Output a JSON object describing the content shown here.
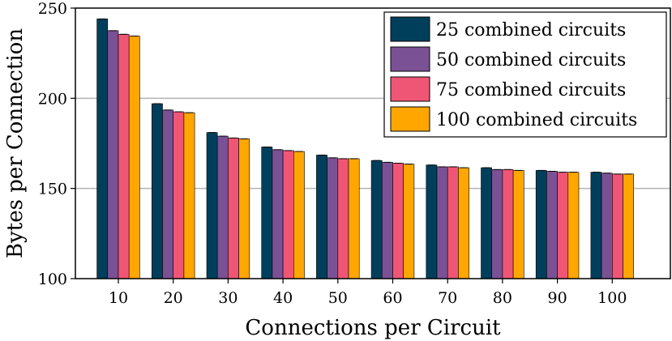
{
  "chart_data": {
    "type": "bar",
    "xlabel": "Connections per Circuit",
    "ylabel": "Bytes per Connection",
    "categories": [
      "10",
      "20",
      "30",
      "40",
      "50",
      "60",
      "70",
      "80",
      "90",
      "100"
    ],
    "ylim": [
      100,
      250
    ],
    "yticks": [
      100,
      150,
      200,
      250
    ],
    "grid": "horizontal",
    "legend_position": "top-right",
    "series": [
      {
        "name": "25 combined circuits",
        "color": "#003f5c",
        "values": [
          244,
          197,
          181,
          173,
          168.5,
          165.5,
          163,
          161.5,
          160,
          159
        ]
      },
      {
        "name": "50 combined circuits",
        "color": "#7a5195",
        "values": [
          237.5,
          193.5,
          179,
          171.5,
          167,
          164.5,
          162,
          160.5,
          159.5,
          158.5
        ]
      },
      {
        "name": "75 combined circuits",
        "color": "#ef5675",
        "values": [
          235.5,
          192.5,
          178,
          171,
          166.5,
          164,
          162,
          160.5,
          159,
          158
        ]
      },
      {
        "name": "100 combined circuits",
        "color": "#ffa600",
        "values": [
          234.5,
          192,
          177.5,
          170.5,
          166.5,
          163.5,
          161.5,
          160,
          159,
          158
        ]
      }
    ]
  }
}
